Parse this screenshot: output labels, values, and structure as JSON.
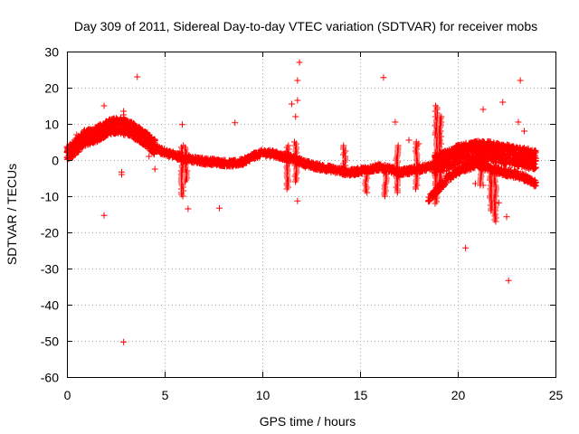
{
  "chart_data": {
    "type": "scatter",
    "title": "Day 309 of 2011, Sidereal Day-to-day VTEC variation (SDTVAR) for receiver mobs",
    "xlabel": "GPS time / hours",
    "ylabel": "SDTVAR / TECUs",
    "xlim": [
      0,
      25
    ],
    "ylim": [
      -60,
      30
    ],
    "xticks": [
      0,
      5,
      10,
      15,
      20,
      25
    ],
    "yticks": [
      30,
      20,
      10,
      0,
      -10,
      -20,
      -30,
      -40,
      -50,
      -60
    ],
    "grid": true,
    "marker": "plus",
    "color": "#ff0000",
    "series": [
      {
        "name": "SDTVAR",
        "trend": [
          [
            0.0,
            1.5
          ],
          [
            0.3,
            3.0
          ],
          [
            0.6,
            4.5
          ],
          [
            0.9,
            6.0
          ],
          [
            1.2,
            6.5
          ],
          [
            1.5,
            7.0
          ],
          [
            1.8,
            8.0
          ],
          [
            2.1,
            9.0
          ],
          [
            2.4,
            9.5
          ],
          [
            2.7,
            9.5
          ],
          [
            3.0,
            9.0
          ],
          [
            3.3,
            8.5
          ],
          [
            3.6,
            7.5
          ],
          [
            3.9,
            6.5
          ],
          [
            4.2,
            5.0
          ],
          [
            4.5,
            3.5
          ],
          [
            4.8,
            2.5
          ],
          [
            5.1,
            2.0
          ],
          [
            5.4,
            1.5
          ],
          [
            5.7,
            1.0
          ],
          [
            6.0,
            0.5
          ],
          [
            6.5,
            0.0
          ],
          [
            7.0,
            -0.3
          ],
          [
            7.5,
            -0.5
          ],
          [
            8.0,
            -0.8
          ],
          [
            8.5,
            -1.0
          ],
          [
            9.0,
            -0.5
          ],
          [
            9.5,
            1.0
          ],
          [
            10.0,
            2.0
          ],
          [
            10.5,
            1.8
          ],
          [
            11.0,
            1.0
          ],
          [
            11.5,
            0.5
          ],
          [
            12.0,
            -0.5
          ],
          [
            12.5,
            -1.5
          ],
          [
            13.0,
            -2.0
          ],
          [
            13.5,
            -2.5
          ],
          [
            14.0,
            -3.0
          ],
          [
            14.5,
            -3.5
          ],
          [
            15.0,
            -3.0
          ],
          [
            15.5,
            -2.5
          ],
          [
            16.0,
            -2.0
          ],
          [
            16.5,
            -2.5
          ],
          [
            17.0,
            -3.5
          ],
          [
            17.5,
            -3.0
          ],
          [
            18.0,
            -2.5
          ],
          [
            18.5,
            -2.0
          ],
          [
            19.0,
            -1.0
          ],
          [
            19.5,
            0.0
          ],
          [
            20.0,
            1.5
          ],
          [
            20.5,
            2.0
          ],
          [
            21.0,
            2.5
          ],
          [
            21.5,
            2.5
          ],
          [
            22.0,
            2.0
          ],
          [
            22.5,
            1.5
          ],
          [
            23.0,
            1.0
          ],
          [
            23.5,
            0.5
          ],
          [
            24.0,
            0.0
          ]
        ],
        "lower_branch": [
          [
            18.5,
            -11.0
          ],
          [
            19.0,
            -8.0
          ],
          [
            19.5,
            -5.0
          ],
          [
            20.0,
            -3.0
          ],
          [
            20.5,
            -2.0
          ],
          [
            21.0,
            -1.0
          ],
          [
            21.5,
            -2.0
          ],
          [
            22.0,
            -3.0
          ],
          [
            22.5,
            -3.5
          ],
          [
            23.0,
            -4.0
          ],
          [
            23.5,
            -5.0
          ],
          [
            24.0,
            -6.5
          ]
        ],
        "spikes": [
          [
            5.9,
            -10.0,
            4.0
          ],
          [
            6.1,
            -6.0,
            3.5
          ],
          [
            11.3,
            -8.0,
            4.0
          ],
          [
            11.7,
            -6.0,
            5.0
          ],
          [
            14.2,
            -4.0,
            4.0
          ],
          [
            15.3,
            -9.0,
            -2.0
          ],
          [
            16.3,
            -10.0,
            -2.0
          ],
          [
            16.9,
            -9.0,
            4.0
          ],
          [
            17.9,
            -8.0,
            5.0
          ],
          [
            18.9,
            -12.0,
            15.0
          ],
          [
            19.1,
            -7.0,
            12.0
          ],
          [
            21.2,
            -7.0,
            5.0
          ],
          [
            21.7,
            -14.0,
            -3.0
          ],
          [
            21.9,
            -17.0,
            -4.0
          ]
        ],
        "outliers": [
          [
            3.6,
            23
          ],
          [
            11.9,
            27
          ],
          [
            11.8,
            22
          ],
          [
            11.8,
            16.5
          ],
          [
            16.2,
            22.8
          ],
          [
            23.2,
            22
          ],
          [
            22.3,
            16
          ],
          [
            21.3,
            14
          ],
          [
            11.5,
            15.5
          ],
          [
            11.7,
            12
          ],
          [
            8.6,
            10.3
          ],
          [
            5.9,
            9.8
          ],
          [
            16.8,
            10.5
          ],
          [
            23.1,
            10.5
          ],
          [
            23.4,
            8
          ],
          [
            1.9,
            15
          ],
          [
            1.9,
            -15.3
          ],
          [
            7.8,
            -13.3
          ],
          [
            6.2,
            -13.5
          ],
          [
            11.8,
            -11.3
          ],
          [
            22.5,
            -15.7
          ],
          [
            20.4,
            -24.3
          ],
          [
            22.6,
            -33.3
          ],
          [
            2.9,
            -50.3
          ],
          [
            2.8,
            -3.3
          ],
          [
            2.8,
            -4.0
          ],
          [
            1.0,
            8.0
          ],
          [
            0.5,
            7.0
          ],
          [
            4.5,
            -2.5
          ],
          [
            4.2,
            1.0
          ],
          [
            20.9,
            -6.5
          ],
          [
            21.3,
            -7.0
          ],
          [
            0.9,
            8.3
          ],
          [
            2.9,
            13.5
          ],
          [
            2.9,
            12.5
          ],
          [
            17.5,
            5.5
          ],
          [
            18.0,
            4.5
          ],
          [
            22.1,
            -11.8
          ],
          [
            21.9,
            -9.0
          ],
          [
            12.2,
            -2.0
          ]
        ]
      }
    ]
  }
}
